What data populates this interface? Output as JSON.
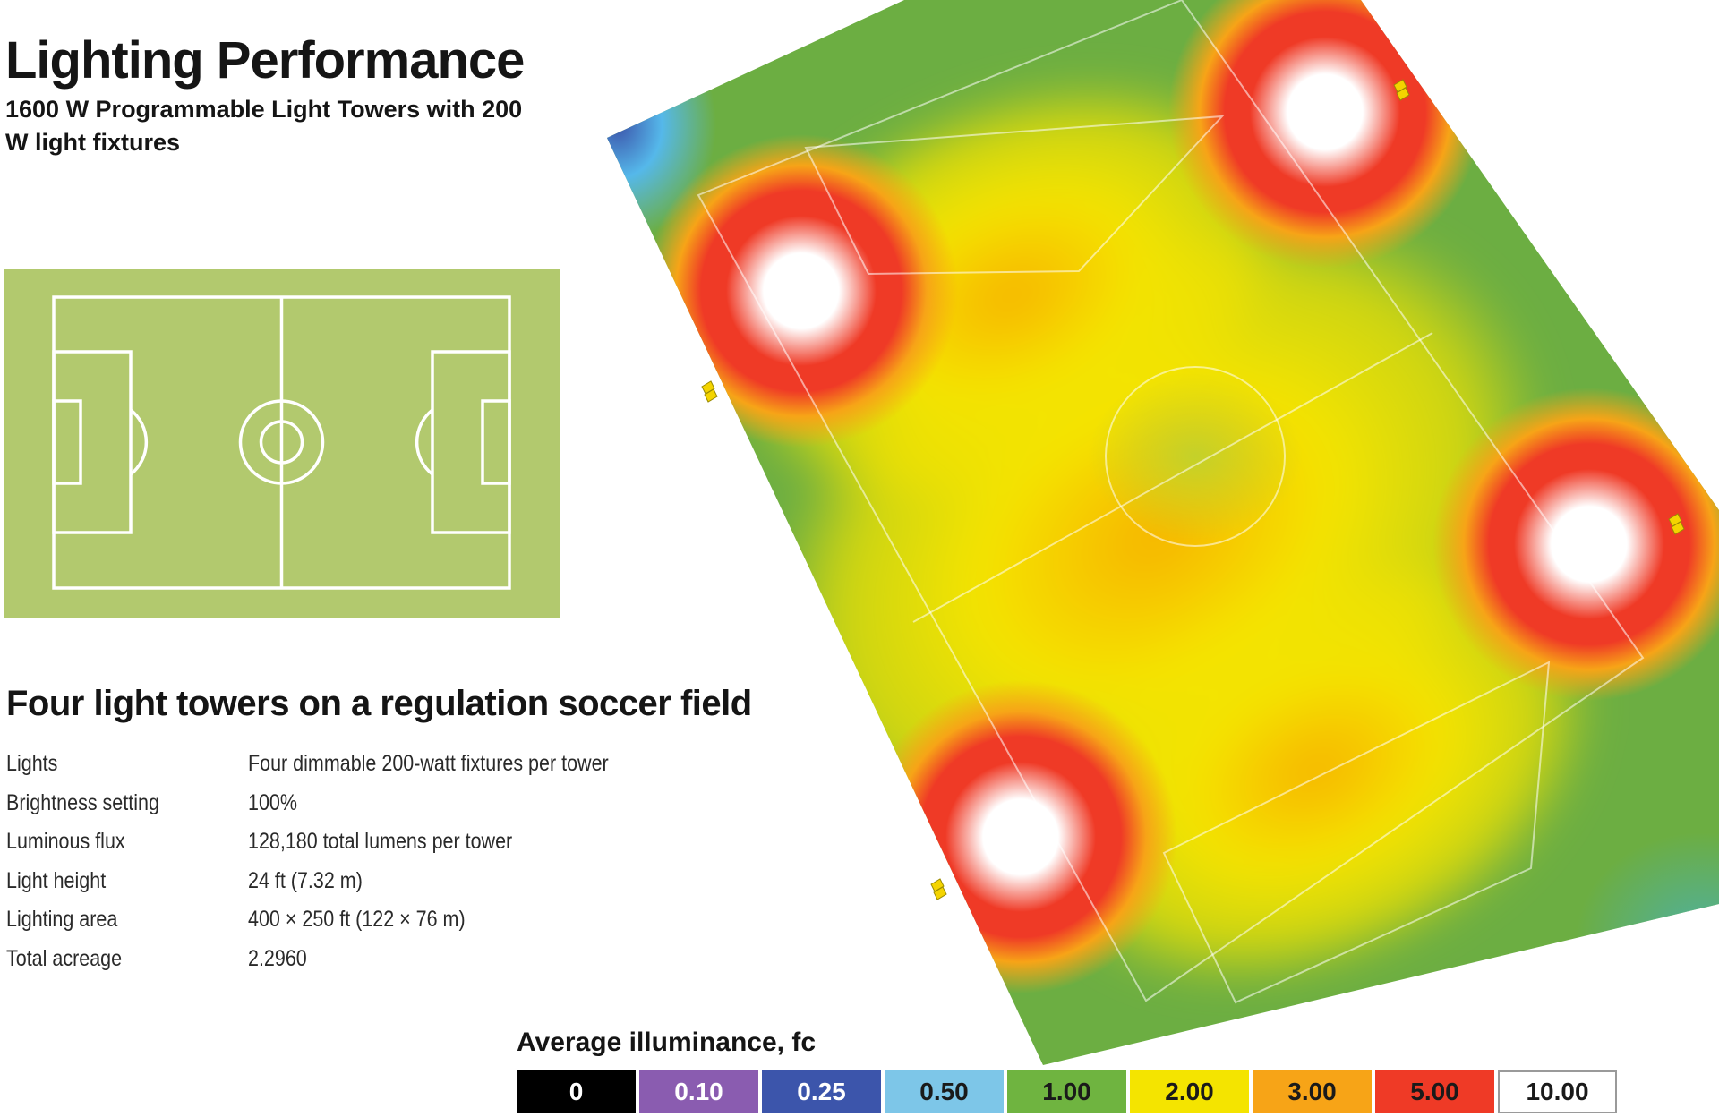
{
  "header": {
    "title": "Lighting Performance",
    "subtitle": "1600 W Programmable Light Towers with 200 W light fixtures"
  },
  "field_diagram": {
    "grass_color": "#b2c96e",
    "line_color": "#ffffff"
  },
  "section": {
    "title": "Four light towers on a regulation soccer field"
  },
  "specs": [
    {
      "label": "Lights",
      "value": "Four dimmable 200-watt fixtures per tower"
    },
    {
      "label": "Brightness setting",
      "value": "100%"
    },
    {
      "label": "Luminous flux",
      "value": "128,180 total lumens per tower"
    },
    {
      "label": "Light height",
      "value": "24 ft (7.32 m)"
    },
    {
      "label": "Lighting area",
      "value": "400 × 250 ft (122 × 76 m)"
    },
    {
      "label": "Total acreage",
      "value": "2.2960"
    }
  ],
  "legend": {
    "title": "Average illuminance, fc",
    "items": [
      {
        "label": "0",
        "color": "#000000",
        "text_color": "#ffffff"
      },
      {
        "label": "0.10",
        "color": "#8a5cb0",
        "text_color": "#ffffff"
      },
      {
        "label": "0.25",
        "color": "#3c55ab",
        "text_color": "#ffffff"
      },
      {
        "label": "0.50",
        "color": "#7dc6e8",
        "text_color": "#1a1a1a"
      },
      {
        "label": "1.00",
        "color": "#6fb440",
        "text_color": "#1a1a1a"
      },
      {
        "label": "2.00",
        "color": "#f4e400",
        "text_color": "#1a1a1a"
      },
      {
        "label": "3.00",
        "color": "#f7a417",
        "text_color": "#1a1a1a"
      },
      {
        "label": "5.00",
        "color": "#ef3a26",
        "text_color": "#1a1a1a"
      },
      {
        "label": "10.00",
        "color": "#ffffff",
        "text_color": "#1a1a1a"
      }
    ]
  }
}
